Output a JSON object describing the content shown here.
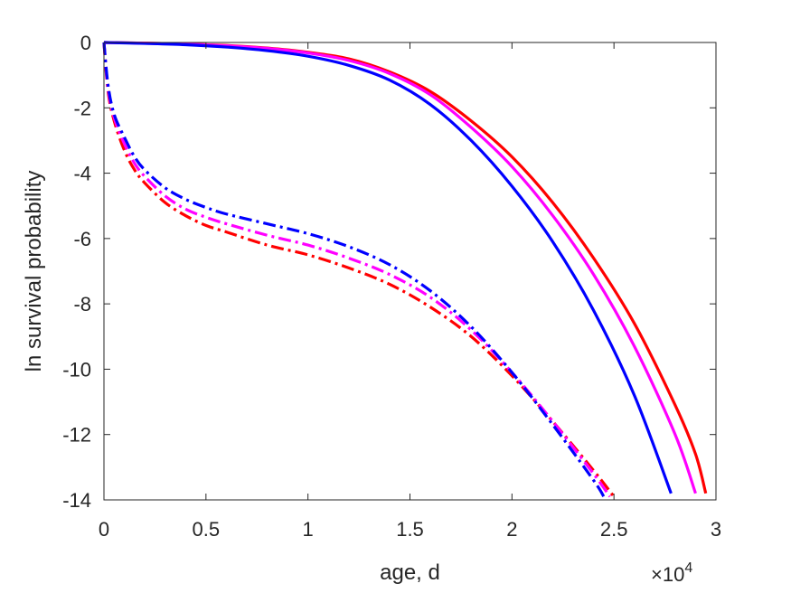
{
  "chart_data": {
    "type": "line",
    "xlabel": "age, d",
    "ylabel": "ln survival probability",
    "x_exponent_label": "×10",
    "x_exponent_power": "4",
    "x_scale_note": "×10^4",
    "xlim": [
      0,
      30000
    ],
    "ylim": [
      -14,
      0
    ],
    "x_tick_labels": [
      "0",
      "0.5",
      "1",
      "1.5",
      "2",
      "2.5",
      "3"
    ],
    "x_tick_values": [
      0,
      5000,
      10000,
      15000,
      20000,
      25000,
      30000
    ],
    "y_tick_labels": [
      "0",
      "-2",
      "-4",
      "-6",
      "-8",
      "-10",
      "-12",
      "-14"
    ],
    "y_tick_values": [
      0,
      -2,
      -4,
      -6,
      -8,
      -10,
      -12,
      -14
    ],
    "grid": false,
    "series": [
      {
        "style": "solid",
        "color": "#ff0000",
        "x": [
          0,
          2000,
          4000,
          6000,
          8000,
          10000,
          12000,
          14000,
          16000,
          18000,
          20000,
          22000,
          24000,
          26000,
          28000,
          29000,
          29500
        ],
        "y": [
          0,
          -0.02,
          -0.05,
          -0.09,
          -0.17,
          -0.3,
          -0.5,
          -0.9,
          -1.5,
          -2.4,
          -3.5,
          -4.9,
          -6.6,
          -8.6,
          -11.1,
          -12.6,
          -13.8
        ]
      },
      {
        "style": "solid",
        "color": "#ff00ff",
        "x": [
          0,
          2000,
          4000,
          6000,
          8000,
          10000,
          12000,
          14000,
          16000,
          18000,
          20000,
          22000,
          24000,
          26000,
          28000,
          29000
        ],
        "y": [
          0,
          -0.02,
          -0.05,
          -0.1,
          -0.18,
          -0.32,
          -0.55,
          -0.95,
          -1.6,
          -2.6,
          -3.8,
          -5.3,
          -7.1,
          -9.3,
          -12.0,
          -13.8
        ]
      },
      {
        "style": "solid",
        "color": "#0000ff",
        "x": [
          0,
          2000,
          4000,
          6000,
          8000,
          10000,
          12000,
          14000,
          16000,
          18000,
          20000,
          22000,
          24000,
          26000,
          27800
        ],
        "y": [
          0,
          -0.03,
          -0.07,
          -0.14,
          -0.25,
          -0.42,
          -0.7,
          -1.15,
          -1.9,
          -3.0,
          -4.4,
          -6.1,
          -8.2,
          -10.8,
          -13.8
        ]
      },
      {
        "style": "dashdot",
        "color": "#ff0000",
        "x": [
          0,
          200,
          500,
          1000,
          1500,
          2000,
          3000,
          4000,
          5000,
          6000,
          8000,
          10000,
          12000,
          14000,
          16000,
          18000,
          20000,
          22000,
          24000,
          25000
        ],
        "y": [
          0,
          -1.5,
          -2.4,
          -3.3,
          -3.9,
          -4.3,
          -4.9,
          -5.3,
          -5.6,
          -5.8,
          -6.2,
          -6.5,
          -6.9,
          -7.4,
          -8.1,
          -9.0,
          -10.2,
          -11.6,
          -13.1,
          -13.9
        ]
      },
      {
        "style": "dashdot",
        "color": "#ff00ff",
        "x": [
          0,
          200,
          500,
          1000,
          1500,
          2000,
          3000,
          4000,
          5000,
          6000,
          8000,
          10000,
          12000,
          14000,
          16000,
          18000,
          20000,
          22000,
          24000,
          24800
        ],
        "y": [
          0,
          -1.4,
          -2.3,
          -3.1,
          -3.7,
          -4.1,
          -4.7,
          -5.1,
          -5.35,
          -5.55,
          -5.9,
          -6.2,
          -6.6,
          -7.1,
          -7.8,
          -8.8,
          -10.1,
          -11.6,
          -13.2,
          -13.9
        ]
      },
      {
        "style": "dashdot",
        "color": "#0000ff",
        "x": [
          0,
          200,
          500,
          1000,
          1500,
          2000,
          3000,
          4000,
          5000,
          6000,
          8000,
          10000,
          12000,
          14000,
          16000,
          18000,
          20000,
          22000,
          24000,
          24500
        ],
        "y": [
          0,
          -1.3,
          -2.2,
          -2.9,
          -3.5,
          -3.9,
          -4.45,
          -4.8,
          -5.05,
          -5.25,
          -5.55,
          -5.85,
          -6.25,
          -6.8,
          -7.6,
          -8.7,
          -10.1,
          -11.7,
          -13.4,
          -13.9
        ]
      }
    ]
  }
}
